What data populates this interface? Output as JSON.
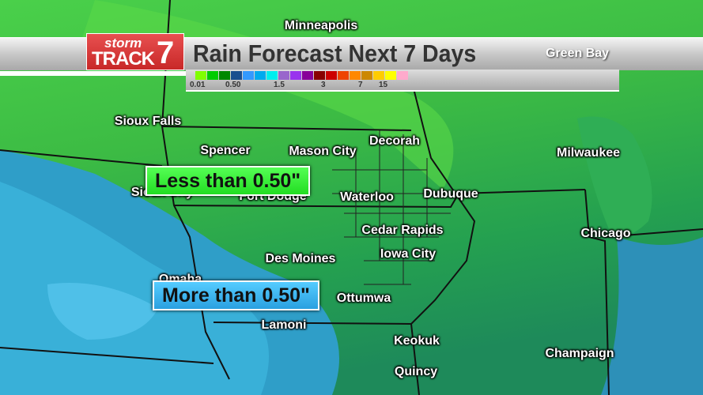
{
  "header": {
    "brand": "storm TRACK 7",
    "title": "Rain Forecast Next 7 Days",
    "corner_city": "Green Bay"
  },
  "legend": {
    "colors": [
      "#80ff00",
      "#00cc00",
      "#008800",
      "#1a4f8f",
      "#3399ff",
      "#00aaee",
      "#00eeee",
      "#9966cc",
      "#9933ee",
      "#880099",
      "#880000",
      "#cc0000",
      "#ee4400",
      "#ff8800",
      "#cc8800",
      "#ffcc00",
      "#ffff00",
      "#ffaacc"
    ],
    "labels": [
      "0.01",
      "0.50",
      "1.5",
      "3",
      "7",
      "15"
    ]
  },
  "callouts": {
    "less": "Less than 0.50\"",
    "more": "More than 0.50\"",
    "less_color": "#22dd22",
    "more_color": "#33aaee"
  },
  "cities": [
    "Minneapolis",
    "Sioux Falls",
    "Spencer",
    "Mason City",
    "Decorah",
    "Milwaukee",
    "Sioux City",
    "Fort Dodge",
    "Waterloo",
    "Dubuque",
    "Cedar Rapids",
    "Chicago",
    "Iowa City",
    "Des Moines",
    "Omaha",
    "Ottumwa",
    "Lamoni",
    "Keokuk",
    "Champaign",
    "Quincy"
  ]
}
